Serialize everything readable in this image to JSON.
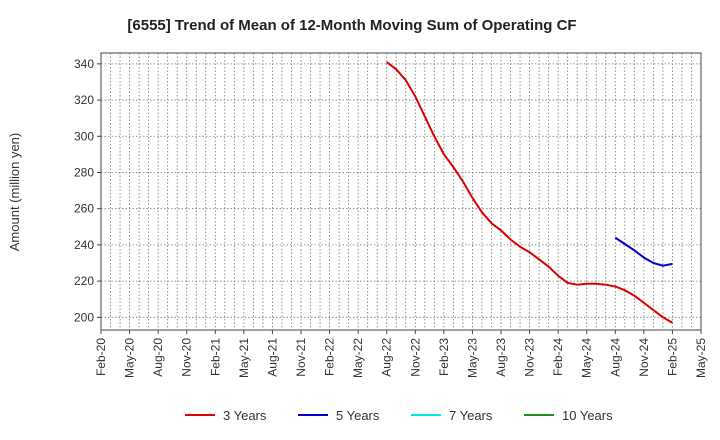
{
  "chart_data": {
    "type": "line",
    "title": "[6555]  Trend of Mean of 12-Month Moving Sum of Operating CF",
    "xlabel": "",
    "ylabel": "Amount (million yen)",
    "ylim": [
      193,
      346
    ],
    "yticks": [
      200,
      220,
      240,
      260,
      280,
      300,
      320,
      340
    ],
    "categories": [
      "Feb-20",
      "May-20",
      "Aug-20",
      "Nov-20",
      "Feb-21",
      "May-21",
      "Aug-21",
      "Nov-21",
      "Feb-22",
      "May-22",
      "Aug-22",
      "Nov-22",
      "Feb-23",
      "May-23",
      "Aug-23",
      "Nov-23",
      "Feb-24",
      "May-24",
      "Aug-24",
      "Nov-24",
      "Feb-25",
      "May-25"
    ],
    "x_domain": [
      0,
      63
    ],
    "grid": true,
    "legend_position": "bottom",
    "series": [
      {
        "name": "3 Years",
        "color": "#dd0000",
        "x": [
          30,
          31,
          32,
          33,
          34,
          35,
          36,
          37,
          38,
          39,
          40,
          41,
          42,
          43,
          44,
          45,
          46,
          47,
          48,
          49,
          50,
          51,
          52,
          53,
          54,
          55,
          56,
          57,
          58,
          59,
          60
        ],
        "values": [
          341,
          337,
          331,
          322,
          311,
          300,
          290,
          283,
          275,
          266,
          258,
          252,
          248,
          243,
          239,
          236,
          232,
          228,
          223,
          219,
          218,
          218.5,
          218.5,
          218,
          217,
          215,
          212,
          208,
          204,
          200,
          197
        ]
      },
      {
        "name": "5 Years",
        "color": "#0000cc",
        "x": [
          54,
          55,
          56,
          57,
          58,
          59,
          60
        ],
        "values": [
          244,
          240.5,
          237,
          233,
          230,
          228.5,
          229.5
        ]
      },
      {
        "name": "7 Years",
        "color": "#00e5ee",
        "x": [],
        "values": []
      },
      {
        "name": "10 Years",
        "color": "#228b22",
        "x": [],
        "values": []
      }
    ]
  }
}
